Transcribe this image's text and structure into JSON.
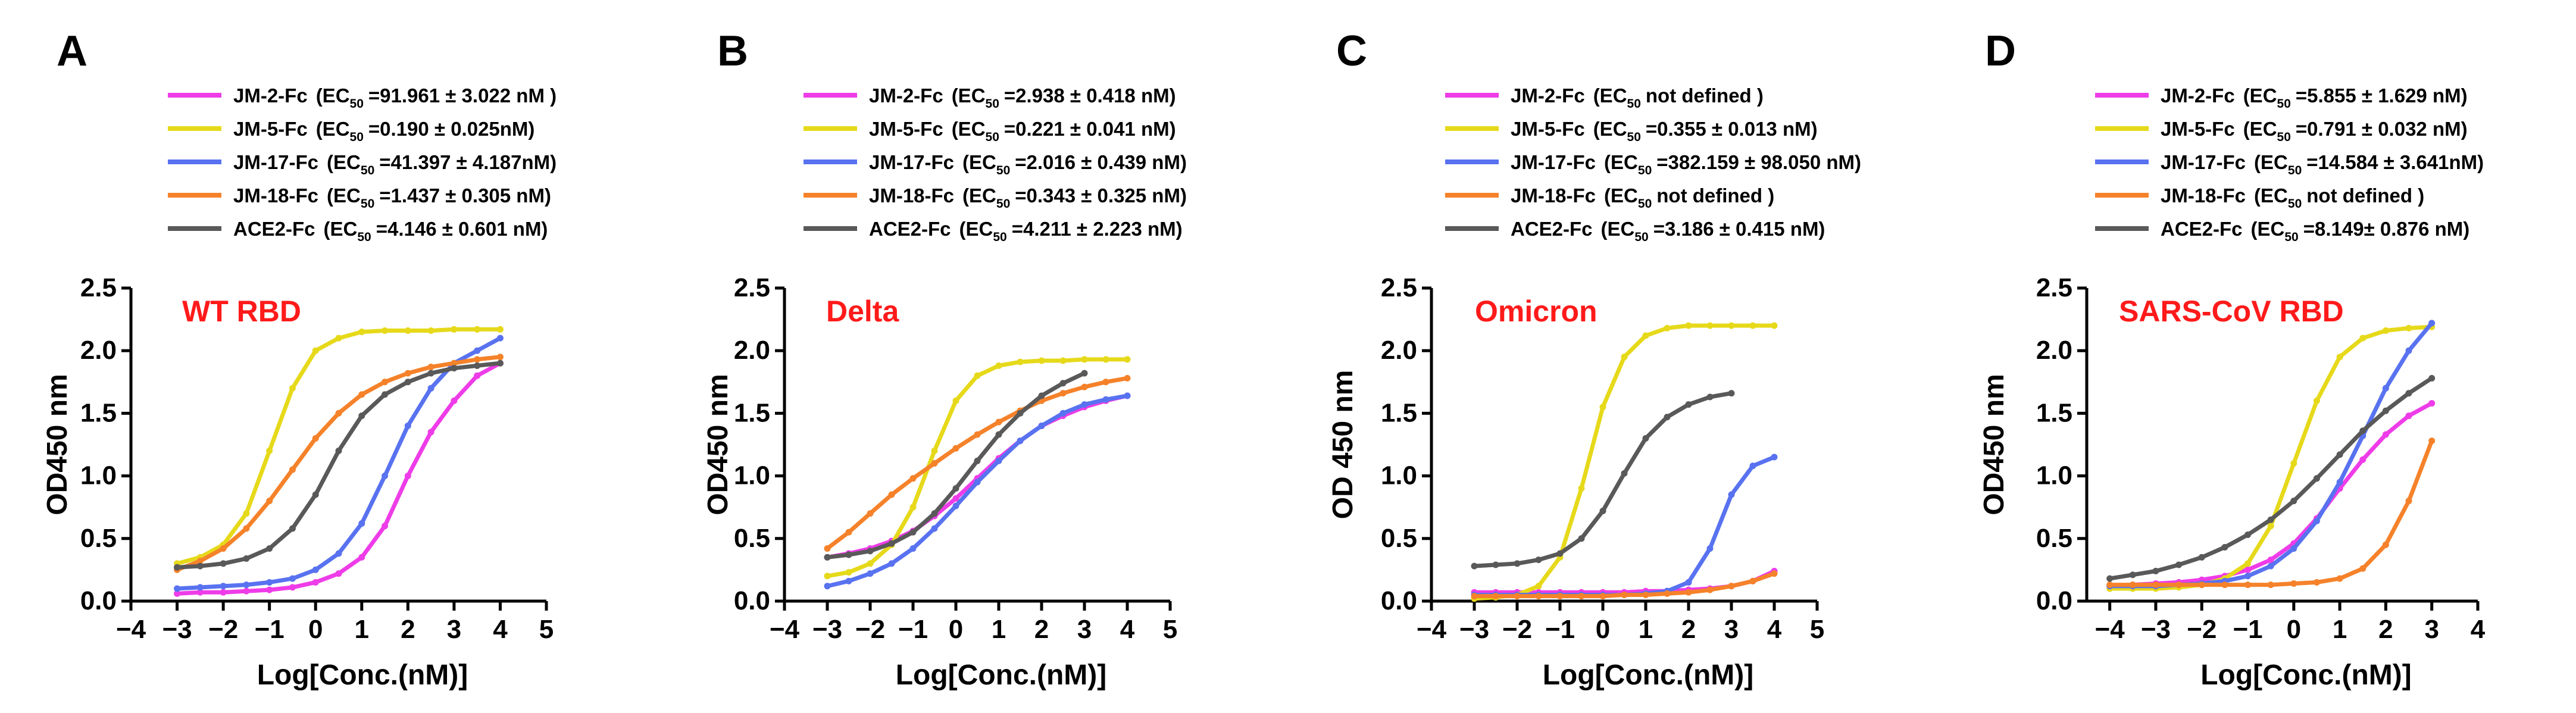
{
  "colors": {
    "JM-2-Fc": "#ee3ce8",
    "JM-5-Fc": "#e6d91a",
    "JM-17-Fc": "#5872f0",
    "JM-18-Fc": "#f5822a",
    "ACE2-Fc": "#595959",
    "panel_title": "#ff1a1a",
    "axis": "#000000"
  },
  "chart_data": [
    {
      "type": "line",
      "panel": "A",
      "title": "WT RBD",
      "xlabel": "Log[Conc.(nM)]",
      "ylabel": "OD450 nm",
      "xlim": [
        -4,
        5
      ],
      "ylim": [
        0,
        2.5
      ],
      "xticks": [
        "−4",
        "−3",
        "−2",
        "−1",
        "0",
        "1",
        "2",
        "3",
        "4",
        "5"
      ],
      "yticks": [
        "0.0",
        "0.5",
        "1.0",
        "1.5",
        "2.0",
        "2.5"
      ],
      "legend": [
        {
          "label": "JM-2-Fc",
          "ec": "=91.961 ± 3.022 nM )"
        },
        {
          "label": "JM-5-Fc",
          "ec": "=0.190 ±  0.025nM)"
        },
        {
          "label": "JM-17-Fc",
          "ec": "=41.397 ±  4.187nM)"
        },
        {
          "label": "JM-18-Fc",
          "ec": "=1.437 ±  0.305 nM)"
        },
        {
          "label": "ACE2-Fc",
          "ec": "=4.146 ± 0.601 nM)"
        }
      ],
      "series": [
        {
          "name": "JM-2-Fc",
          "x": [
            -3,
            -2.5,
            -2,
            -1.5,
            -1,
            -0.5,
            0,
            0.5,
            1,
            1.5,
            2,
            2.5,
            3,
            3.5,
            4
          ],
          "y": [
            0.06,
            0.07,
            0.07,
            0.08,
            0.09,
            0.11,
            0.15,
            0.22,
            0.35,
            0.6,
            1.0,
            1.35,
            1.6,
            1.8,
            1.9
          ]
        },
        {
          "name": "JM-5-Fc",
          "x": [
            -3,
            -2.5,
            -2,
            -1.5,
            -1,
            -0.5,
            0,
            0.5,
            1,
            1.5,
            2,
            2.5,
            3,
            3.5,
            4
          ],
          "y": [
            0.3,
            0.35,
            0.45,
            0.7,
            1.2,
            1.7,
            2.0,
            2.1,
            2.15,
            2.16,
            2.16,
            2.16,
            2.17,
            2.17,
            2.17
          ]
        },
        {
          "name": "JM-17-Fc",
          "x": [
            -3,
            -2.5,
            -2,
            -1.5,
            -1,
            -0.5,
            0,
            0.5,
            1,
            1.5,
            2,
            2.5,
            3,
            3.5,
            4
          ],
          "y": [
            0.1,
            0.11,
            0.12,
            0.13,
            0.15,
            0.18,
            0.25,
            0.38,
            0.62,
            1.0,
            1.4,
            1.7,
            1.9,
            2.0,
            2.1
          ]
        },
        {
          "name": "JM-18-Fc",
          "x": [
            -3,
            -2.5,
            -2,
            -1.5,
            -1,
            -0.5,
            0,
            0.5,
            1,
            1.5,
            2,
            2.5,
            3,
            3.5,
            4
          ],
          "y": [
            0.25,
            0.32,
            0.42,
            0.58,
            0.8,
            1.05,
            1.3,
            1.5,
            1.65,
            1.75,
            1.82,
            1.87,
            1.9,
            1.93,
            1.95
          ]
        },
        {
          "name": "ACE2-Fc",
          "x": [
            -3,
            -2.5,
            -2,
            -1.5,
            -1,
            -0.5,
            0,
            0.5,
            1,
            1.5,
            2,
            2.5,
            3,
            3.5,
            4
          ],
          "y": [
            0.27,
            0.28,
            0.3,
            0.34,
            0.42,
            0.58,
            0.85,
            1.2,
            1.48,
            1.65,
            1.75,
            1.82,
            1.86,
            1.88,
            1.9
          ]
        }
      ]
    },
    {
      "type": "line",
      "panel": "B",
      "title": "Delta",
      "xlabel": "Log[Conc.(nM)]",
      "ylabel": "OD450 nm",
      "xlim": [
        -4,
        5
      ],
      "ylim": [
        0,
        2.5
      ],
      "xticks": [
        "−4",
        "−3",
        "−2",
        "−1",
        "0",
        "1",
        "2",
        "3",
        "4",
        "5"
      ],
      "yticks": [
        "0.0",
        "0.5",
        "1.0",
        "1.5",
        "2.0",
        "2.5"
      ],
      "legend": [
        {
          "label": "JM-2-Fc",
          "ec": "=2.938 ± 0.418 nM)"
        },
        {
          "label": "JM-5-Fc",
          "ec": "=0.221 ± 0.041 nM)"
        },
        {
          "label": "JM-17-Fc",
          "ec": "=2.016 ± 0.439 nM)"
        },
        {
          "label": "JM-18-Fc",
          "ec": "=0.343 ± 0.325 nM)"
        },
        {
          "label": "ACE2-Fc",
          "ec": "=4.211 ± 2.223 nM)"
        }
      ],
      "series": [
        {
          "name": "JM-2-Fc",
          "x": [
            -3,
            -2.5,
            -2,
            -1.5,
            -1,
            -0.5,
            0,
            0.5,
            1,
            1.5,
            2,
            2.5,
            3,
            3.5,
            4
          ],
          "y": [
            0.35,
            0.38,
            0.42,
            0.48,
            0.56,
            0.68,
            0.82,
            0.98,
            1.14,
            1.28,
            1.4,
            1.48,
            1.55,
            1.6,
            1.64
          ]
        },
        {
          "name": "JM-5-Fc",
          "x": [
            -3,
            -2.5,
            -2,
            -1.5,
            -1,
            -0.5,
            0,
            0.5,
            1,
            1.5,
            2,
            2.5,
            3,
            3.5,
            4
          ],
          "y": [
            0.2,
            0.23,
            0.3,
            0.45,
            0.75,
            1.2,
            1.6,
            1.8,
            1.88,
            1.91,
            1.92,
            1.92,
            1.93,
            1.93,
            1.93
          ]
        },
        {
          "name": "JM-17-Fc",
          "x": [
            -3,
            -2.5,
            -2,
            -1.5,
            -1,
            -0.5,
            0,
            0.5,
            1,
            1.5,
            2,
            2.5,
            3,
            3.5,
            4
          ],
          "y": [
            0.12,
            0.16,
            0.22,
            0.3,
            0.42,
            0.58,
            0.76,
            0.95,
            1.12,
            1.28,
            1.4,
            1.5,
            1.57,
            1.61,
            1.64
          ]
        },
        {
          "name": "JM-18-Fc",
          "x": [
            -3,
            -2.5,
            -2,
            -1.5,
            -1,
            -0.5,
            0,
            0.5,
            1,
            1.5,
            2,
            2.5,
            3,
            3.5,
            4
          ],
          "y": [
            0.42,
            0.55,
            0.7,
            0.85,
            0.98,
            1.1,
            1.22,
            1.33,
            1.43,
            1.52,
            1.6,
            1.66,
            1.71,
            1.75,
            1.78
          ]
        },
        {
          "name": "ACE2-Fc",
          "x": [
            -3,
            -2.5,
            -2,
            -1.5,
            -1,
            -0.5,
            0,
            0.5,
            1,
            1.5,
            2,
            2.5,
            3
          ],
          "y": [
            0.35,
            0.37,
            0.4,
            0.46,
            0.55,
            0.7,
            0.9,
            1.12,
            1.33,
            1.5,
            1.64,
            1.74,
            1.82
          ]
        }
      ]
    },
    {
      "type": "line",
      "panel": "C",
      "title": "Omicron",
      "xlabel": "Log[Conc.(nM)]",
      "ylabel": "OD 450 nm",
      "xlim": [
        -4,
        5
      ],
      "ylim": [
        0,
        2.5
      ],
      "xticks": [
        "−4",
        "−3",
        "−2",
        "−1",
        "0",
        "1",
        "2",
        "3",
        "4",
        "5"
      ],
      "yticks": [
        "0.0",
        "0.5",
        "1.0",
        "1.5",
        "2.0",
        "2.5"
      ],
      "legend": [
        {
          "label": "JM-2-Fc",
          "ec": "not defined )"
        },
        {
          "label": "JM-5-Fc",
          "ec": "=0.355 ± 0.013 nM)"
        },
        {
          "label": "JM-17-Fc",
          "ec": "=382.159 ± 98.050 nM)"
        },
        {
          "label": "JM-18-Fc",
          "ec": "not defined )"
        },
        {
          "label": "ACE2-Fc",
          "ec": "=3.186 ± 0.415 nM)"
        }
      ],
      "series": [
        {
          "name": "JM-2-Fc",
          "x": [
            -3,
            -2.5,
            -2,
            -1.5,
            -1,
            -0.5,
            0,
            0.5,
            1,
            1.5,
            2,
            2.5,
            3,
            3.5,
            4
          ],
          "y": [
            0.07,
            0.07,
            0.07,
            0.07,
            0.07,
            0.07,
            0.07,
            0.07,
            0.08,
            0.08,
            0.09,
            0.1,
            0.12,
            0.16,
            0.24
          ]
        },
        {
          "name": "JM-5-Fc",
          "x": [
            -3,
            -2.5,
            -2,
            -1.5,
            -1,
            -0.5,
            0,
            0.5,
            1,
            1.5,
            2,
            2.5,
            3,
            3.5,
            4
          ],
          "y": [
            0.02,
            0.03,
            0.05,
            0.12,
            0.35,
            0.9,
            1.55,
            1.95,
            2.12,
            2.18,
            2.2,
            2.2,
            2.2,
            2.2,
            2.2
          ]
        },
        {
          "name": "JM-17-Fc",
          "x": [
            -3,
            -2.5,
            -2,
            -1.5,
            -1,
            -0.5,
            0,
            0.5,
            1,
            1.5,
            2,
            2.5,
            3,
            3.5,
            4
          ],
          "y": [
            0.05,
            0.05,
            0.05,
            0.05,
            0.05,
            0.05,
            0.05,
            0.05,
            0.06,
            0.08,
            0.15,
            0.42,
            0.85,
            1.08,
            1.15
          ]
        },
        {
          "name": "JM-18-Fc",
          "x": [
            -3,
            -2.5,
            -2,
            -1.5,
            -1,
            -0.5,
            0,
            0.5,
            1,
            1.5,
            2,
            2.5,
            3,
            3.5,
            4
          ],
          "y": [
            0.04,
            0.04,
            0.04,
            0.04,
            0.04,
            0.04,
            0.04,
            0.05,
            0.05,
            0.06,
            0.07,
            0.09,
            0.12,
            0.16,
            0.22
          ]
        },
        {
          "name": "ACE2-Fc",
          "x": [
            -3,
            -2.5,
            -2,
            -1.5,
            -1,
            -0.5,
            0,
            0.5,
            1,
            1.5,
            2,
            2.5,
            3
          ],
          "y": [
            0.28,
            0.29,
            0.3,
            0.33,
            0.38,
            0.5,
            0.72,
            1.02,
            1.3,
            1.47,
            1.57,
            1.63,
            1.66
          ]
        }
      ]
    },
    {
      "type": "line",
      "panel": "D",
      "title": "SARS-CoV RBD",
      "xlabel": "Log[Conc.(nM)]",
      "ylabel": "OD450 nm",
      "xlim": [
        -4.5,
        4
      ],
      "ylim": [
        0,
        2.5
      ],
      "xticks": [
        "−4",
        "−3",
        "−2",
        "−1",
        "0",
        "1",
        "2",
        "3",
        "4"
      ],
      "yticks": [
        "0.0",
        "0.5",
        "1.0",
        "1.5",
        "2.0",
        "2.5"
      ],
      "legend": [
        {
          "label": "JM-2-Fc",
          "ec": "=5.855 ± 1.629 nM)"
        },
        {
          "label": "JM-5-Fc",
          "ec": "=0.791 ± 0.032 nM)"
        },
        {
          "label": "JM-17-Fc",
          "ec": "=14.584 ± 3.641nM)"
        },
        {
          "label": "JM-18-Fc",
          "ec": "not defined )"
        },
        {
          "label": "ACE2-Fc",
          "ec": "=8.149± 0.876 nM)"
        }
      ],
      "series": [
        {
          "name": "JM-2-Fc",
          "x": [
            -4,
            -3.5,
            -3,
            -2.5,
            -2,
            -1.5,
            -1,
            -0.5,
            0,
            0.5,
            1,
            1.5,
            2,
            2.5,
            3
          ],
          "y": [
            0.12,
            0.13,
            0.14,
            0.15,
            0.17,
            0.2,
            0.25,
            0.33,
            0.46,
            0.66,
            0.9,
            1.13,
            1.33,
            1.48,
            1.58
          ]
        },
        {
          "name": "JM-5-Fc",
          "x": [
            -4,
            -3.5,
            -3,
            -2.5,
            -2,
            -1.5,
            -1,
            -0.5,
            0,
            0.5,
            1,
            1.5,
            2,
            2.5,
            3
          ],
          "y": [
            0.1,
            0.1,
            0.1,
            0.11,
            0.13,
            0.18,
            0.3,
            0.6,
            1.1,
            1.6,
            1.95,
            2.1,
            2.16,
            2.18,
            2.19
          ]
        },
        {
          "name": "JM-17-Fc",
          "x": [
            -4,
            -3.5,
            -3,
            -2.5,
            -2,
            -1.5,
            -1,
            -0.5,
            0,
            0.5,
            1,
            1.5,
            2,
            2.5,
            3
          ],
          "y": [
            0.12,
            0.12,
            0.12,
            0.13,
            0.14,
            0.16,
            0.2,
            0.28,
            0.42,
            0.64,
            0.95,
            1.32,
            1.7,
            2.0,
            2.22
          ]
        },
        {
          "name": "JM-18-Fc",
          "x": [
            -4,
            -3.5,
            -3,
            -2.5,
            -2,
            -1.5,
            -1,
            -0.5,
            0,
            0.5,
            1,
            1.5,
            2,
            2.5,
            3
          ],
          "y": [
            0.13,
            0.13,
            0.13,
            0.13,
            0.13,
            0.13,
            0.13,
            0.13,
            0.14,
            0.15,
            0.18,
            0.26,
            0.45,
            0.8,
            1.28
          ]
        },
        {
          "name": "ACE2-Fc",
          "x": [
            -4,
            -3.5,
            -3,
            -2.5,
            -2,
            -1.5,
            -1,
            -0.5,
            0,
            0.5,
            1,
            1.5,
            2,
            2.5,
            3
          ],
          "y": [
            0.18,
            0.21,
            0.24,
            0.29,
            0.35,
            0.43,
            0.53,
            0.65,
            0.8,
            0.98,
            1.17,
            1.36,
            1.52,
            1.66,
            1.78
          ]
        }
      ]
    }
  ]
}
